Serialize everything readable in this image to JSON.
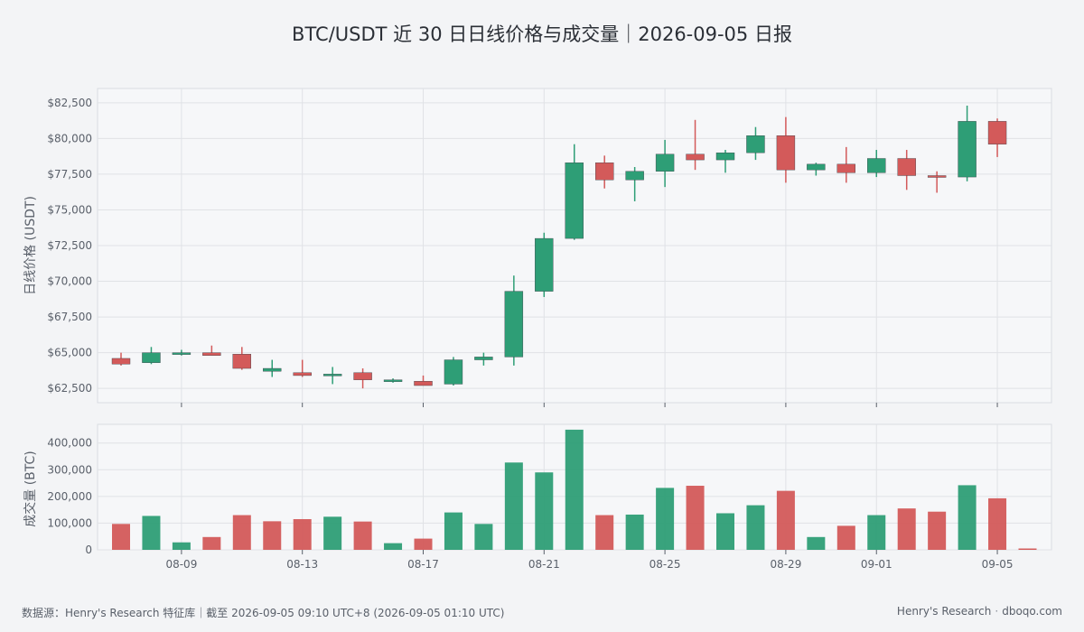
{
  "title": "BTC/USDT 近 30 日日线价格与成交量｜2026-09-05 日报",
  "footer": {
    "source": "数据源：Henry's Research 特征库｜截至 2026-09-05 09:10 UTC+8 (2026-09-05 01:10 UTC)",
    "brand": "Henry's Research",
    "separator": "·",
    "domain": "dboqo.com"
  },
  "colors": {
    "up": "#2e9e76",
    "down": "#d35a5a",
    "panel_bg": "#f6f7f9",
    "grid": "#e0e2e6"
  },
  "chart_data": [
    {
      "type": "candlestick",
      "title": "",
      "xlabel": "",
      "ylabel": "日线价格 (USDT)",
      "ylim": [
        61500,
        83500
      ],
      "yticks": [
        62500,
        65000,
        67500,
        70000,
        72500,
        75000,
        77500,
        80000,
        82500
      ],
      "ytick_labels": [
        "$62,500",
        "$65,000",
        "$67,500",
        "$70,000",
        "$72,500",
        "$75,000",
        "$77,500",
        "$80,000",
        "$82,500"
      ],
      "grid": true,
      "dates": [
        "08-07",
        "08-08",
        "08-09",
        "08-10",
        "08-11",
        "08-12",
        "08-13",
        "08-14",
        "08-15",
        "08-16",
        "08-17",
        "08-18",
        "08-19",
        "08-20",
        "08-21",
        "08-22",
        "08-23",
        "08-24",
        "08-25",
        "08-26",
        "08-27",
        "08-28",
        "08-29",
        "08-30",
        "08-31",
        "09-01",
        "09-02",
        "09-03",
        "09-04",
        "09-05"
      ],
      "open": [
        64600,
        64300,
        64900,
        65000,
        64900,
        63700,
        63600,
        63400,
        63600,
        63000,
        63000,
        62800,
        64500,
        64700,
        69300,
        73000,
        78300,
        77100,
        77700,
        78900,
        78500,
        79000,
        80200,
        77800,
        78200,
        77600,
        78600,
        77400,
        77300,
        81200
      ],
      "high": [
        65000,
        65400,
        65200,
        65500,
        65400,
        64500,
        64500,
        64000,
        63900,
        63200,
        63400,
        64700,
        65000,
        70400,
        73400,
        79600,
        78800,
        78000,
        79900,
        81300,
        79200,
        80800,
        81500,
        78300,
        79400,
        79200,
        79200,
        77700,
        82300,
        81400
      ],
      "low": [
        64100,
        64200,
        64800,
        64800,
        63800,
        63300,
        63300,
        62800,
        62500,
        62900,
        62700,
        62700,
        64100,
        64100,
        68900,
        72900,
        76500,
        75600,
        76600,
        77800,
        77600,
        78500,
        76900,
        77400,
        76900,
        77300,
        76400,
        76200,
        77000,
        78700
      ],
      "close": [
        64200,
        65000,
        65000,
        64800,
        63900,
        63900,
        63400,
        63500,
        63100,
        63100,
        62700,
        64500,
        64700,
        69300,
        73000,
        78300,
        77100,
        77700,
        78900,
        78500,
        79000,
        80200,
        77800,
        78200,
        77600,
        78600,
        77400,
        77300,
        81200,
        79600
      ],
      "xticks": [
        "08-09",
        "08-13",
        "08-17",
        "08-21",
        "08-25",
        "08-29",
        "09-01",
        "09-05"
      ]
    },
    {
      "type": "bar",
      "title": "",
      "xlabel": "",
      "ylabel": "成交量 (BTC)",
      "ylim": [
        0,
        470000
      ],
      "yticks": [
        0,
        100000,
        200000,
        300000,
        400000
      ],
      "ytick_labels": [
        "0",
        "100,000",
        "200,000",
        "300,000",
        "400,000"
      ],
      "grid": true,
      "categories": [
        "08-07",
        "08-08",
        "08-09",
        "08-10",
        "08-11",
        "08-12",
        "08-13",
        "08-14",
        "08-15",
        "08-16",
        "08-17",
        "08-18",
        "08-19",
        "08-20",
        "08-21",
        "08-22",
        "08-23",
        "08-24",
        "08-25",
        "08-26",
        "08-27",
        "08-28",
        "08-29",
        "08-30",
        "08-31",
        "09-01",
        "09-02",
        "09-03",
        "09-04",
        "09-05"
      ],
      "values": [
        97000,
        127000,
        28000,
        48000,
        130000,
        107000,
        115000,
        124000,
        106000,
        25000,
        42000,
        140000,
        97000,
        327000,
        290000,
        450000,
        130000,
        132000,
        232000,
        240000,
        137000,
        167000,
        221000,
        48000,
        90000,
        130000,
        155000,
        143000,
        242000,
        193000
      ],
      "direction": [
        "down",
        "up",
        "up",
        "down",
        "down",
        "down",
        "down",
        "up",
        "down",
        "up",
        "down",
        "up",
        "up",
        "up",
        "up",
        "up",
        "down",
        "up",
        "up",
        "down",
        "up",
        "up",
        "down",
        "up",
        "down",
        "up",
        "down",
        "down",
        "up",
        "down"
      ],
      "extra_last": {
        "date": "09-05",
        "value": 5000,
        "direction": "down"
      }
    }
  ]
}
